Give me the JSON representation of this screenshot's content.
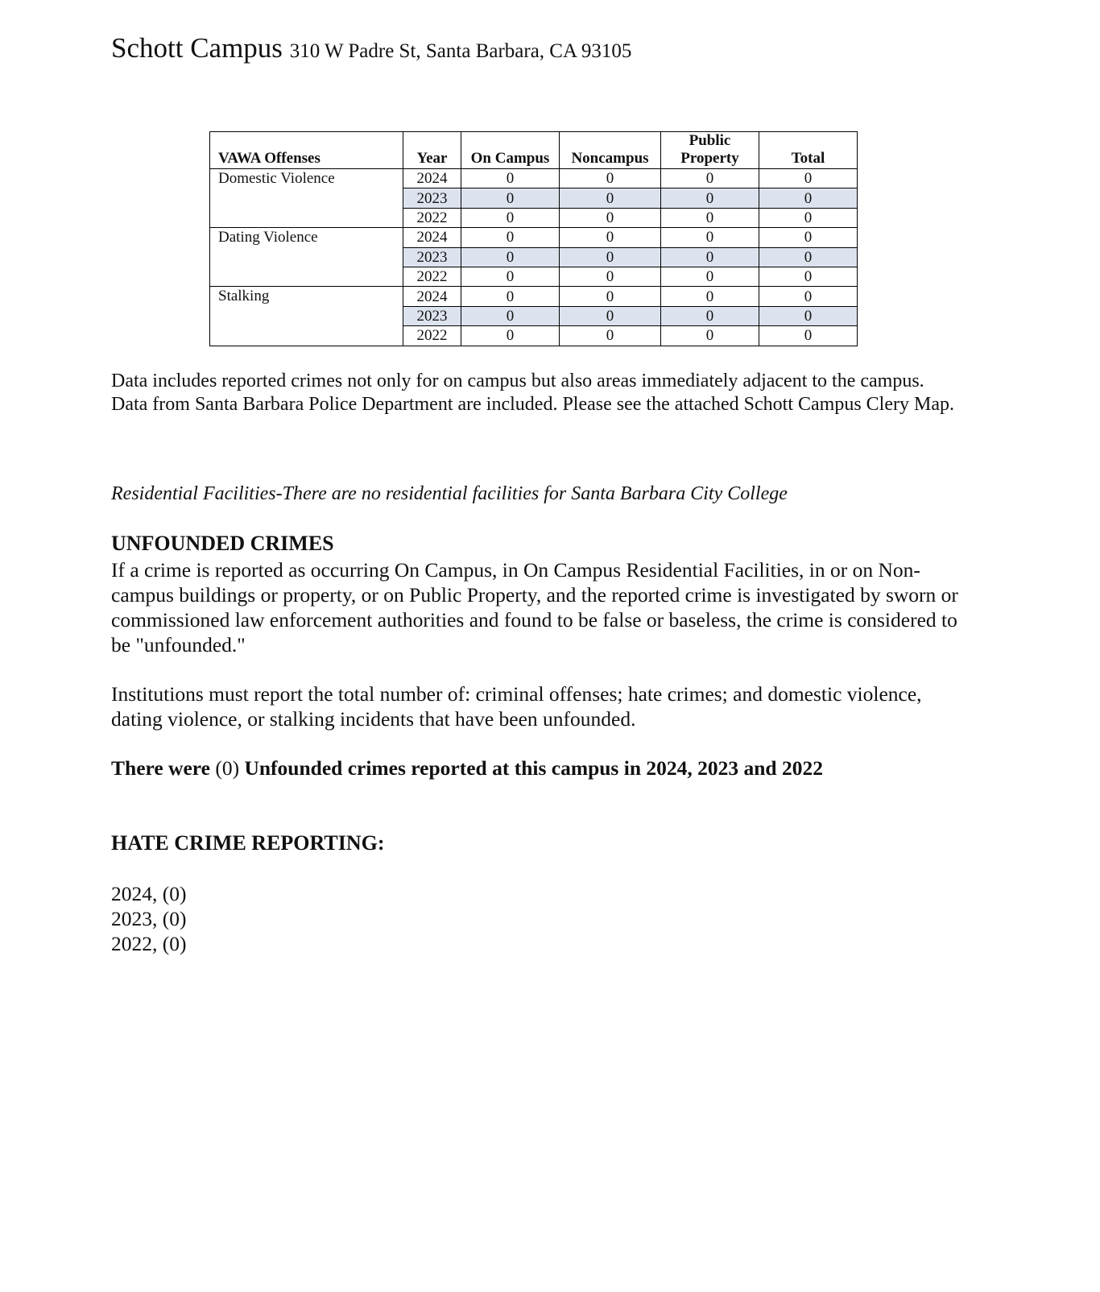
{
  "header": {
    "title": "Schott Campus",
    "address": "310 W Padre St, Santa Barbara, CA 93105"
  },
  "table": {
    "headers": [
      "VAWA Offenses",
      "Year",
      "On Campus",
      "Noncampus",
      "Public Property",
      "Total"
    ],
    "groups": [
      {
        "offense": "Domestic Violence",
        "rows": [
          [
            "2024",
            "0",
            "0",
            "0",
            "0"
          ],
          [
            "2023",
            "0",
            "0",
            "0",
            "0"
          ],
          [
            "2022",
            "0",
            "0",
            "0",
            "0"
          ]
        ]
      },
      {
        "offense": "Dating Violence",
        "rows": [
          [
            "2024",
            "0",
            "0",
            "0",
            "0"
          ],
          [
            "2023",
            "0",
            "0",
            "0",
            "0"
          ],
          [
            "2022",
            "0",
            "0",
            "0",
            "0"
          ]
        ]
      },
      {
        "offense": "Stalking",
        "rows": [
          [
            "2024",
            "0",
            "0",
            "0",
            "0"
          ],
          [
            "2023",
            "0",
            "0",
            "0",
            "0"
          ],
          [
            "2022",
            "0",
            "0",
            "0",
            "0"
          ]
        ]
      }
    ],
    "shade_color": "#dde3ee"
  },
  "note": "Data includes reported crimes not only for on campus but also areas immediately adjacent to the campus. Data from Santa Barbara Police Department are included.  Please see the attached Schott Campus Clery Map.",
  "residential": "Residential Facilities-There are no residential facilities for Santa Barbara City College",
  "unfounded": {
    "heading": "UNFOUNDED CRIMES",
    "body": "If a crime is reported as occurring On Campus, in On Campus Residential Facilities, in or on Non-campus buildings or property, or on Public Property, and the reported crime is investigated by sworn or commissioned law enforcement authorities and found to be false or baseless, the crime is considered to be \"unfounded.\"",
    "institutions": "Institutions must report the total number of: criminal offenses; hate crimes; and domestic violence, dating violence, or stalking incidents that have been unfounded.",
    "statement_a": "There were",
    "statement_count": "(0)",
    "statement_b": "Unfounded crimes reported at this campus in 2024, 2023 and 2022"
  },
  "hate": {
    "heading": "HATE CRIME REPORTING:",
    "lines": [
      "2024, (0)",
      "2023, (0)",
      "2022, (0)"
    ]
  }
}
